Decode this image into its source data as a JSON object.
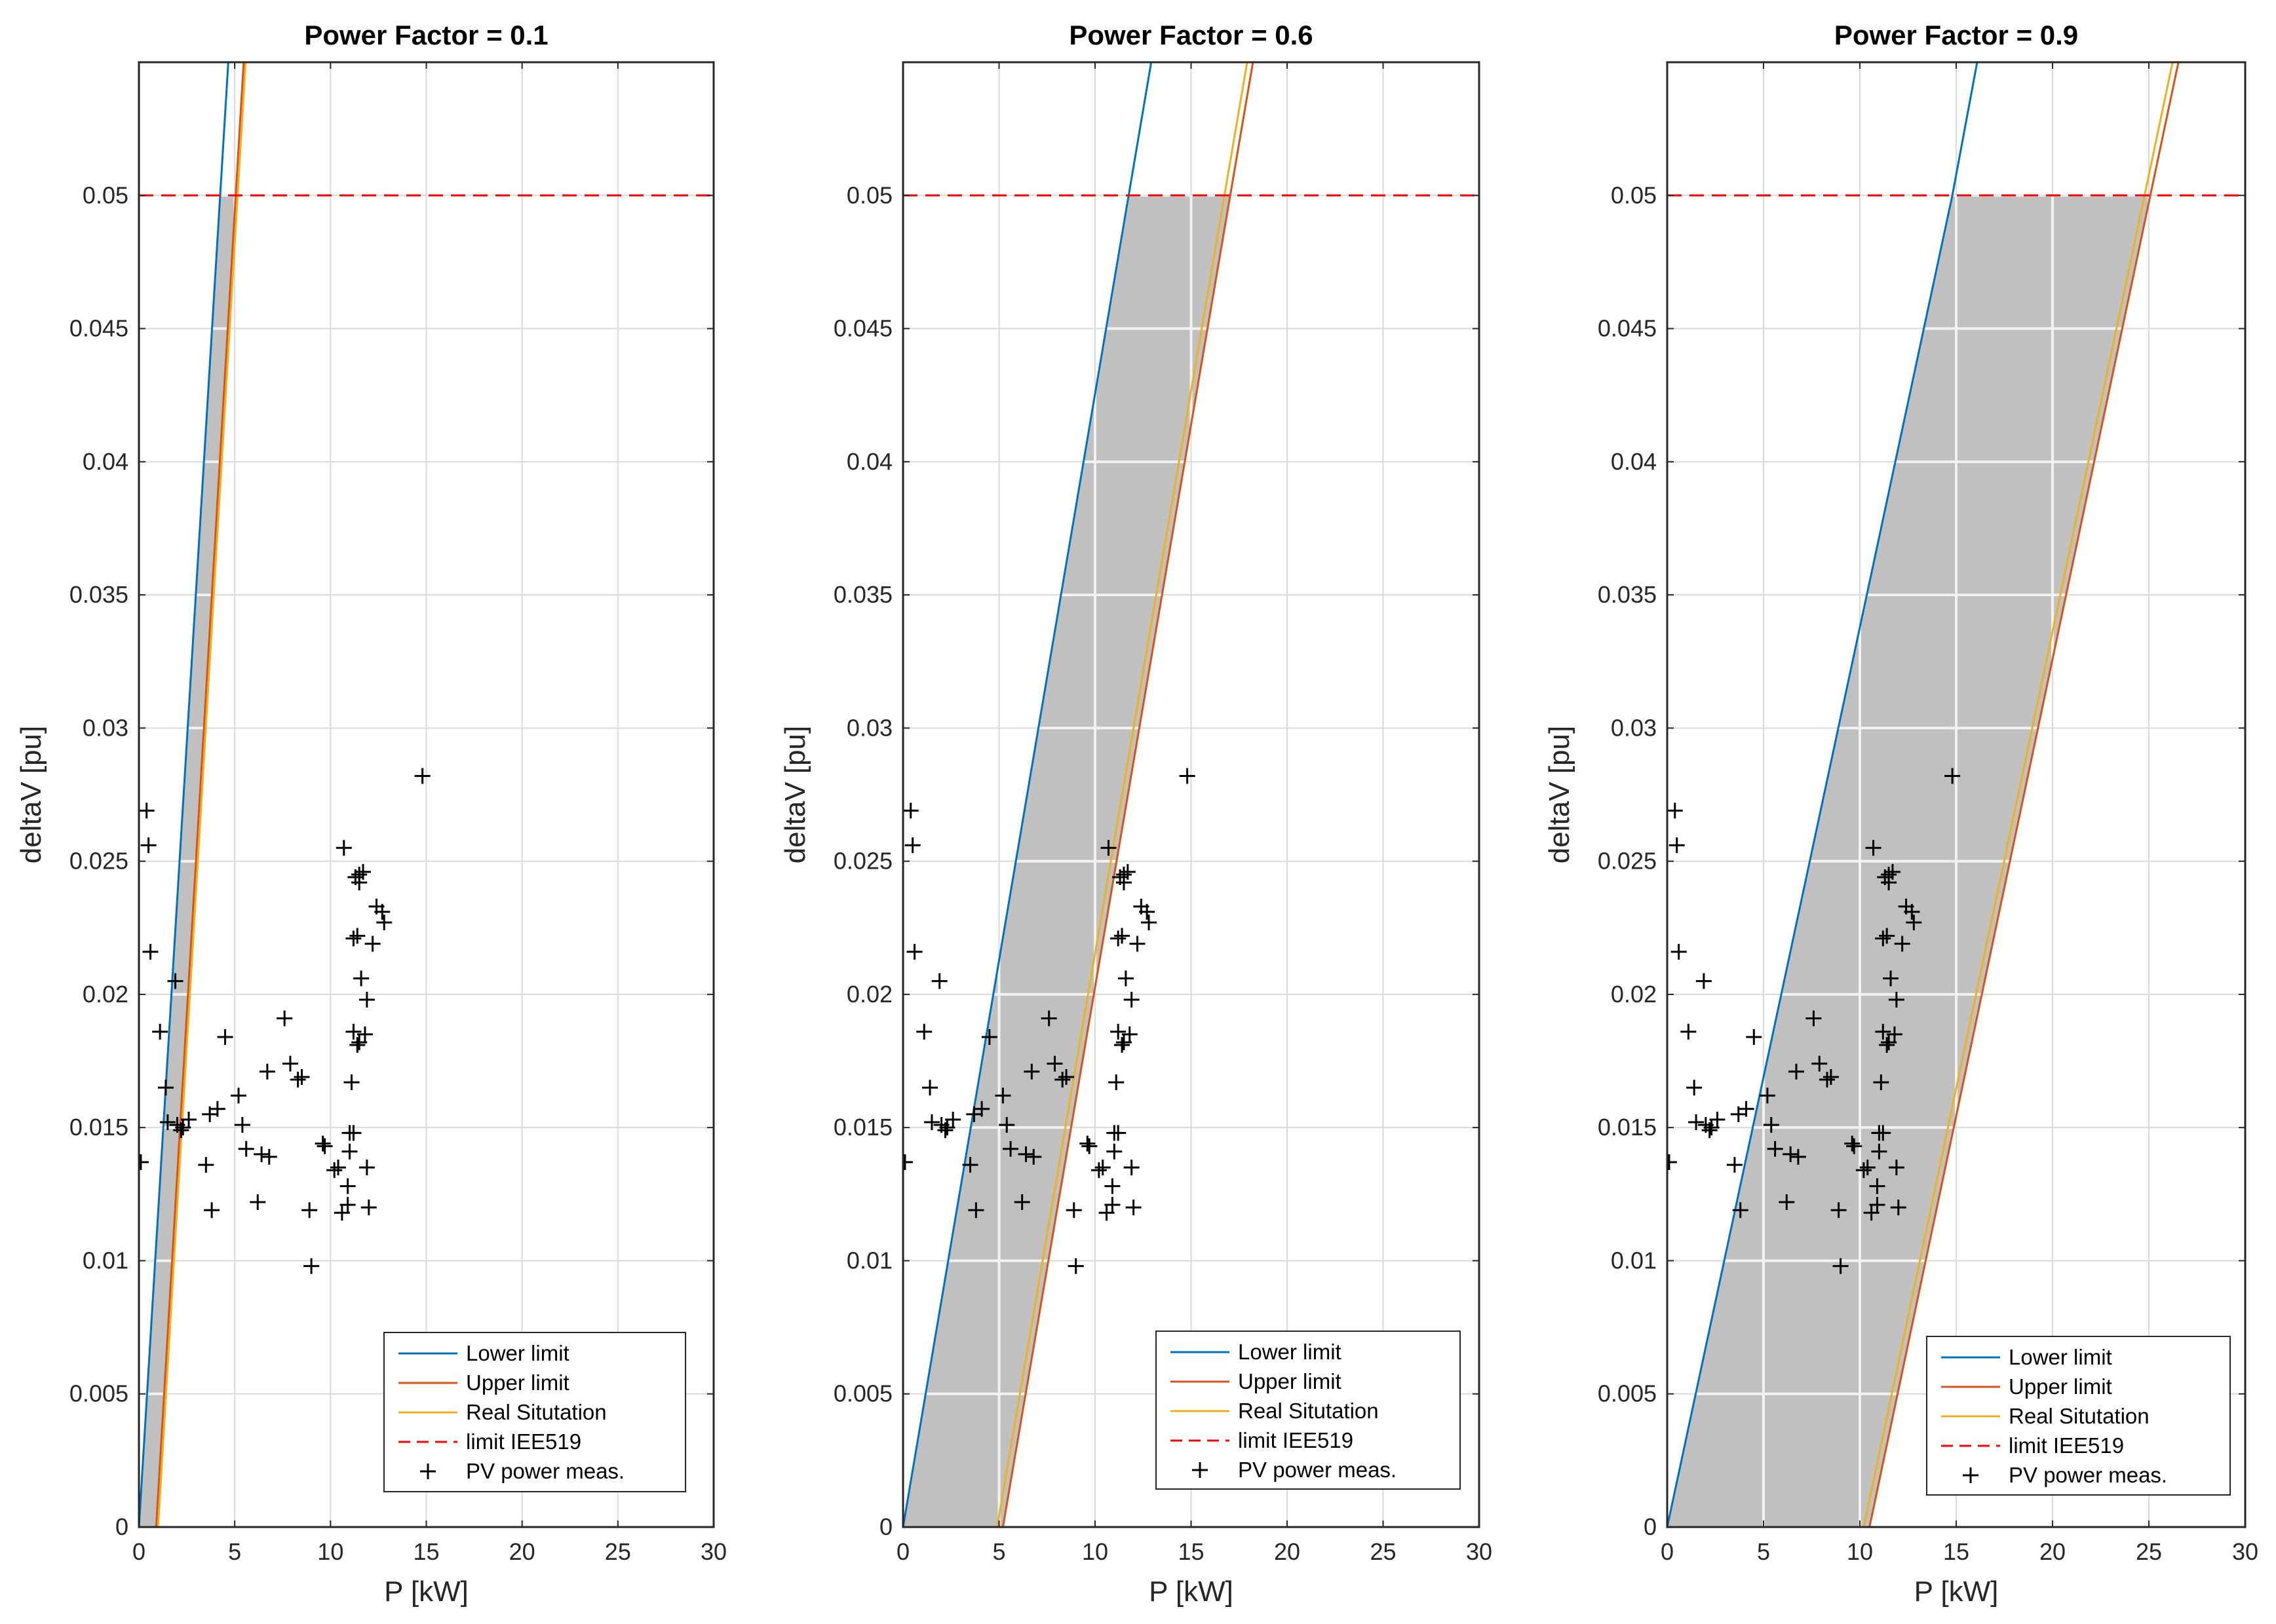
{
  "chart_data": [
    {
      "type": "line",
      "title": "Power Factor = 0.1",
      "xlabel": "P [kW]",
      "ylabel": "deltaV [pu]",
      "xlim": [
        0,
        30
      ],
      "ylim": [
        0,
        0.055
      ],
      "xticks": [
        0,
        5,
        10,
        15,
        20,
        25,
        30
      ],
      "yticks": [
        0,
        0.005,
        0.01,
        0.015,
        0.02,
        0.025,
        0.03,
        0.035,
        0.04,
        0.045,
        0.05
      ],
      "xtick_labels": [
        "0",
        "5",
        "10",
        "15",
        "20",
        "25",
        "30"
      ],
      "ytick_labels": [
        "0",
        "0.005",
        "0.01",
        "0.015",
        "0.02",
        "0.025",
        "0.03",
        "0.035",
        "0.04",
        "0.045",
        "0.05"
      ],
      "grid": true,
      "legend_position": "bottom-right",
      "series": [
        {
          "name": "Lower limit",
          "color": "#0072BD",
          "style": "solid",
          "x": [
            0,
            4.8
          ],
          "y": [
            0,
            0.0566
          ]
        },
        {
          "name": "Upper limit",
          "color": "#D95319",
          "style": "solid",
          "x": [
            0.9,
            5.6
          ],
          "y": [
            0,
            0.0566
          ]
        },
        {
          "name": "Real Situtation",
          "color": "#EDB120",
          "style": "solid",
          "x": [
            1.0,
            5.7
          ],
          "y": [
            0,
            0.0566
          ]
        },
        {
          "name": "limit IEE519",
          "color": "#FF0000",
          "style": "dashed",
          "x": [
            0,
            30
          ],
          "y": [
            0.05,
            0.05
          ]
        },
        {
          "name": "PV power meas.",
          "color": "#000000",
          "style": "markers"
        }
      ],
      "feasible_region": {
        "color": "#C0C0C0",
        "polygon": [
          [
            0,
            0
          ],
          [
            0.9,
            0
          ],
          [
            5.1,
            0.05
          ],
          [
            4.2,
            0.05
          ]
        ]
      }
    },
    {
      "type": "line",
      "title": "Power Factor = 0.6",
      "xlabel": "P [kW]",
      "ylabel": "deltaV [pu]",
      "xlim": [
        0,
        30
      ],
      "ylim": [
        0,
        0.055
      ],
      "xticks": [
        0,
        5,
        10,
        15,
        20,
        25,
        30
      ],
      "yticks": [
        0,
        0.005,
        0.01,
        0.015,
        0.02,
        0.025,
        0.03,
        0.035,
        0.04,
        0.045,
        0.05
      ],
      "xtick_labels": [
        "0",
        "5",
        "10",
        "15",
        "20",
        "25",
        "30"
      ],
      "ytick_labels": [
        "0",
        "0.005",
        "0.01",
        "0.015",
        "0.02",
        "0.025",
        "0.03",
        "0.035",
        "0.04",
        "0.045",
        "0.05"
      ],
      "grid": true,
      "legend_position": "bottom-right",
      "series": [
        {
          "name": "Lower limit",
          "color": "#0072BD",
          "style": "solid",
          "x": [
            0,
            13.3
          ],
          "y": [
            0,
            0.0566
          ]
        },
        {
          "name": "Upper limit",
          "color": "#D95319",
          "style": "solid",
          "x": [
            5.2,
            18.6
          ],
          "y": [
            0,
            0.0566
          ]
        },
        {
          "name": "Real Situtation",
          "color": "#EDB120",
          "style": "solid",
          "x": [
            4.9,
            18.3
          ],
          "y": [
            0,
            0.0566
          ]
        },
        {
          "name": "limit IEE519",
          "color": "#FF0000",
          "style": "dashed",
          "x": [
            0,
            30
          ],
          "y": [
            0.05,
            0.05
          ]
        },
        {
          "name": "PV power meas.",
          "color": "#000000",
          "style": "markers"
        }
      ],
      "feasible_region": {
        "color": "#C0C0C0",
        "polygon": [
          [
            0,
            0
          ],
          [
            5.2,
            0
          ],
          [
            17.0,
            0.05
          ],
          [
            11.8,
            0.05
          ]
        ]
      }
    },
    {
      "type": "line",
      "title": "Power Factor = 0.9",
      "xlabel": "P [kW]",
      "ylabel": "deltaV [pu]",
      "xlim": [
        0,
        30
      ],
      "ylim": [
        0,
        0.055
      ],
      "xticks": [
        0,
        5,
        10,
        15,
        20,
        25,
        30
      ],
      "yticks": [
        0,
        0.005,
        0.01,
        0.015,
        0.02,
        0.025,
        0.03,
        0.035,
        0.04,
        0.045,
        0.05
      ],
      "xtick_labels": [
        "0",
        "5",
        "10",
        "15",
        "20",
        "25",
        "30"
      ],
      "ytick_labels": [
        "0",
        "0.005",
        "0.01",
        "0.015",
        "0.02",
        "0.025",
        "0.03",
        "0.035",
        "0.04",
        "0.045",
        "0.05"
      ],
      "grid": true,
      "legend_position": "bottom-right",
      "series": [
        {
          "name": "Lower limit",
          "color": "#0072BD",
          "style": "solid",
          "x": [
            0,
            14.8,
            16.5
          ],
          "y": [
            0,
            0.05,
            0.0566
          ]
        },
        {
          "name": "Upper limit",
          "color": "#D95319",
          "style": "solid",
          "x": [
            10.5,
            27.0
          ],
          "y": [
            0,
            0.0566
          ]
        },
        {
          "name": "Real Situtation",
          "color": "#EDB120",
          "style": "solid",
          "x": [
            10.2,
            26.7
          ],
          "y": [
            0,
            0.0566
          ]
        },
        {
          "name": "limit IEE519",
          "color": "#FF0000",
          "style": "dashed",
          "x": [
            0,
            30
          ],
          "y": [
            0.05,
            0.05
          ]
        },
        {
          "name": "PV power meas.",
          "color": "#000000",
          "style": "markers"
        }
      ],
      "feasible_region": {
        "color": "#C0C0C0",
        "polygon": [
          [
            0,
            0
          ],
          [
            10.5,
            0
          ],
          [
            25.1,
            0.05
          ],
          [
            14.8,
            0.05
          ]
        ]
      }
    }
  ],
  "measurements": {
    "x": [
      0.1,
      0.4,
      0.5,
      0.6,
      1.1,
      1.4,
      1.5,
      1.9,
      2.0,
      2.2,
      2.3,
      2.6,
      3.5,
      3.7,
      3.8,
      4.1,
      4.5,
      5.2,
      5.4,
      5.6,
      6.2,
      6.4,
      6.7,
      6.8,
      7.6,
      7.9,
      8.3,
      8.5,
      8.9,
      9.0,
      9.6,
      9.7,
      10.2,
      10.4,
      10.6,
      10.7,
      10.9,
      11.0,
      11.1,
      11.2,
      11.3,
      11.4,
      11.5,
      11.6,
      11.7,
      11.8,
      11.9,
      12.0,
      12.2,
      12.4,
      12.7,
      12.8,
      11.2,
      11.4,
      11.5,
      11.9,
      14.8,
      11.0,
      11.5,
      11.2,
      10.9
    ],
    "y": [
      0.0137,
      0.0269,
      0.0256,
      0.0216,
      0.0186,
      0.0165,
      0.0152,
      0.0205,
      0.0151,
      0.0149,
      0.015,
      0.0153,
      0.0136,
      0.0155,
      0.0119,
      0.0157,
      0.0184,
      0.0162,
      0.0151,
      0.0142,
      0.0122,
      0.014,
      0.0171,
      0.0139,
      0.0191,
      0.0174,
      0.0168,
      0.0169,
      0.0119,
      0.0098,
      0.0144,
      0.0143,
      0.0134,
      0.0135,
      0.0118,
      0.0255,
      0.0128,
      0.0141,
      0.0167,
      0.0186,
      0.0244,
      0.0222,
      0.0242,
      0.0206,
      0.0246,
      0.0185,
      0.0198,
      0.012,
      0.0219,
      0.0233,
      0.0231,
      0.0227,
      0.0148,
      0.0181,
      0.0182,
      0.0135,
      0.0282,
      0.0148,
      0.0245,
      0.0221,
      0.0121
    ]
  },
  "legend": {
    "entries": [
      "Lower limit",
      "Upper limit",
      "Real Situtation",
      "limit IEE519",
      "PV power meas."
    ]
  },
  "colors": {
    "fill": "#C0C0C0",
    "grid_on_white": "#DADADA",
    "grid_on_fill": "#F2F2F2",
    "axes": "#262626"
  }
}
